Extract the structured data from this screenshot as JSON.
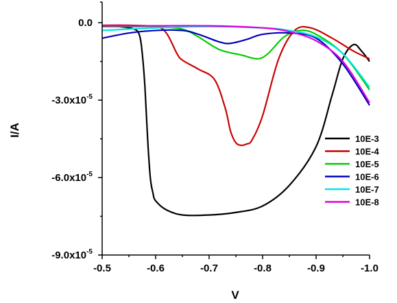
{
  "chart_data": {
    "type": "line",
    "title": "",
    "xlabel": "V",
    "ylabel": "I/A",
    "xlim": [
      -0.5,
      -1.0
    ],
    "ylim": [
      -9e-05,
      8e-06
    ],
    "x_ticks": [
      {
        "value": -0.5,
        "label": "-0.5"
      },
      {
        "value": -0.6,
        "label": "-0.6"
      },
      {
        "value": -0.7,
        "label": "-0.7"
      },
      {
        "value": -0.8,
        "label": "-0.8"
      },
      {
        "value": -0.9,
        "label": "-0.9"
      },
      {
        "value": -1.0,
        "label": "-1.0"
      }
    ],
    "y_ticks": [
      {
        "value": 0,
        "label": "0.0",
        "exp": ""
      },
      {
        "value": -3e-05,
        "label": "-3.0x10",
        "exp": "-5"
      },
      {
        "value": -6e-05,
        "label": "-6.0x10",
        "exp": "-5"
      },
      {
        "value": -9e-05,
        "label": "-9.0x10",
        "exp": "-5"
      }
    ],
    "grid": false,
    "legend_position": "right",
    "series": [
      {
        "name": "10E-3",
        "color": "#000000",
        "x": [
          -0.5,
          -0.53,
          -0.56,
          -0.57,
          -0.575,
          -0.58,
          -0.585,
          -0.59,
          -0.595,
          -0.6,
          -0.62,
          -0.65,
          -0.7,
          -0.75,
          -0.8,
          -0.85,
          -0.9,
          -0.93,
          -0.95,
          -0.97,
          -0.985,
          -1.0
        ],
        "y": [
          -1.5e-06,
          -1.5e-06,
          -2.5e-06,
          -5e-06,
          -1.2e-05,
          -2.5e-05,
          -4.5e-05,
          -6e-05,
          -6.6e-05,
          -6.9e-05,
          -7.25e-05,
          -7.45e-05,
          -7.45e-05,
          -7.35e-05,
          -7.1e-05,
          -6.3e-05,
          -4.8e-05,
          -2.8e-05,
          -1.4e-05,
          -8.5e-06,
          -1.1e-05,
          -1.5e-05
        ]
      },
      {
        "name": "10E-4",
        "color": "#cc0000",
        "x": [
          -0.5,
          -0.55,
          -0.6,
          -0.62,
          -0.64,
          -0.65,
          -0.68,
          -0.71,
          -0.73,
          -0.74,
          -0.75,
          -0.76,
          -0.77,
          -0.78,
          -0.8,
          -0.83,
          -0.86,
          -0.89,
          -0.93,
          -0.97,
          -1.0
        ],
        "y": [
          -1e-06,
          -1e-06,
          -1.5e-06,
          -4e-06,
          -1.2e-05,
          -1.45e-05,
          -1.8e-05,
          -2.2e-05,
          -3.3e-05,
          -4.2e-05,
          -4.65e-05,
          -4.75e-05,
          -4.7e-05,
          -4.55e-05,
          -3.6e-05,
          -1.4e-05,
          -3e-06,
          -2e-06,
          -6e-06,
          -1.1e-05,
          -1.4e-05
        ]
      },
      {
        "name": "10E-5",
        "color": "#00cc00",
        "x": [
          -0.5,
          -0.55,
          -0.6,
          -0.65,
          -0.68,
          -0.72,
          -0.76,
          -0.79,
          -0.81,
          -0.84,
          -0.87,
          -0.9,
          -0.95,
          -1.0
        ],
        "y": [
          -1.5e-06,
          -1.5e-06,
          -1.5e-06,
          -2.5e-06,
          -5.5e-06,
          -1.05e-05,
          -1.25e-05,
          -1.4e-05,
          -1.2e-05,
          -5.5e-06,
          -3e-06,
          -4.5e-06,
          -1.2e-05,
          -2.6e-05
        ]
      },
      {
        "name": "10E-6",
        "color": "#0000bb",
        "x": [
          -0.5,
          -0.55,
          -0.6,
          -0.65,
          -0.68,
          -0.72,
          -0.74,
          -0.77,
          -0.8,
          -0.85,
          -0.9,
          -0.95,
          -1.0
        ],
        "y": [
          -6e-06,
          -4e-06,
          -3e-06,
          -3e-06,
          -4.5e-06,
          -7.5e-06,
          -8e-06,
          -6.5e-06,
          -4.5e-06,
          -4e-06,
          -6e-06,
          -1.6e-05,
          -3.2e-05
        ]
      },
      {
        "name": "10E-7",
        "color": "#00e5e5",
        "x": [
          -0.5,
          -0.6,
          -0.7,
          -0.8,
          -0.85,
          -0.9,
          -0.95,
          -1.0
        ],
        "y": [
          -3e-06,
          -2e-06,
          -1.5e-06,
          -2e-06,
          -3e-06,
          -5.5e-06,
          -1.2e-05,
          -2.5e-05
        ]
      },
      {
        "name": "10E-8",
        "color": "#dd00dd",
        "x": [
          -0.5,
          -0.6,
          -0.7,
          -0.8,
          -0.85,
          -0.9,
          -0.95,
          -1.0
        ],
        "y": [
          -1.2e-06,
          -1.2e-06,
          -1.2e-06,
          -2e-06,
          -3.5e-06,
          -7e-06,
          -1.5e-05,
          -3.1e-05
        ]
      }
    ]
  }
}
